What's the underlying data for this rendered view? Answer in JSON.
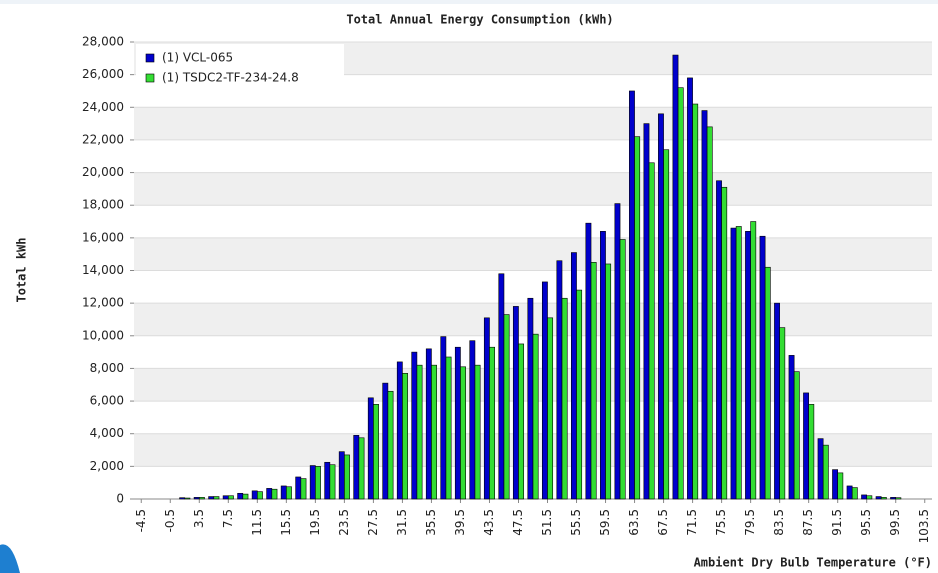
{
  "chart_data": {
    "type": "bar",
    "title": "Total Annual Energy Consumption (kWh)",
    "y_label": "Total kWh",
    "x_label": "Ambient Dry Bulb Temperature (°F)",
    "categories": [
      "-4.5",
      null,
      "-0.5",
      null,
      "3.5",
      null,
      "7.5",
      null,
      "11.5",
      null,
      "15.5",
      null,
      "19.5",
      null,
      "23.5",
      null,
      "27.5",
      null,
      "31.5",
      null,
      "35.5",
      null,
      "39.5",
      null,
      "43.5",
      null,
      "47.5",
      null,
      "51.5",
      null,
      "55.5",
      null,
      "59.5",
      null,
      "63.5",
      null,
      "67.5",
      null,
      "71.5",
      null,
      "75.5",
      null,
      "79.5",
      null,
      "83.5",
      null,
      "87.5",
      null,
      "91.5",
      null,
      "95.5",
      null,
      "99.5",
      null,
      "103.5"
    ],
    "series": [
      {
        "name": "(1) VCL-065",
        "color": "#0000cc",
        "values": [
          0,
          0,
          0,
          80,
          100,
          150,
          200,
          350,
          500,
          650,
          800,
          1350,
          2050,
          2250,
          2900,
          3900,
          6200,
          7100,
          8400,
          9000,
          9200,
          9950,
          9300,
          9700,
          11100,
          13800,
          11800,
          12300,
          13300,
          14600,
          15100,
          16900,
          16400,
          18100,
          25000,
          23000,
          23600,
          27200,
          25800,
          23800,
          19500,
          16600,
          16400,
          16100,
          12000,
          8800,
          6500,
          3700,
          1800,
          800,
          250,
          150,
          100,
          0,
          0
        ]
      },
      {
        "name": "(1) TSDC2-TF-234-24.8",
        "color": "#33dd33",
        "values": [
          0,
          0,
          0,
          60,
          100,
          150,
          200,
          300,
          450,
          600,
          750,
          1250,
          2000,
          2100,
          2700,
          3750,
          5800,
          6600,
          7700,
          8200,
          8200,
          8700,
          8100,
          8200,
          9300,
          11300,
          9500,
          10100,
          11100,
          12300,
          12800,
          14500,
          14400,
          15900,
          22200,
          20600,
          21400,
          25200,
          24200,
          22800,
          19100,
          16700,
          17000,
          14200,
          10500,
          7800,
          5800,
          3300,
          1600,
          700,
          200,
          100,
          80,
          0,
          0
        ]
      }
    ],
    "ylim": [
      0,
      28000
    ],
    "yticks": [
      0,
      {
        "value": 2000,
        "label": "2,000"
      },
      {
        "value": 4000,
        "label": "4,000"
      },
      {
        "value": 6000,
        "label": "6,000"
      },
      {
        "value": 8000,
        "label": "8,000"
      },
      {
        "value": 10000,
        "label": "10,000"
      },
      {
        "value": 12000,
        "label": "12,000"
      },
      {
        "value": 14000,
        "label": "14,000"
      },
      {
        "value": 16000,
        "label": "16,000"
      },
      {
        "value": 18000,
        "label": "18,000"
      },
      {
        "value": 20000,
        "label": "20,000"
      },
      {
        "value": 22000,
        "label": "22,000"
      },
      {
        "value": 24000,
        "label": "24,000"
      },
      {
        "value": 26000,
        "label": "26,000"
      },
      {
        "value": {
          "value": 28000
        },
        "label": "28,000"
      }
    ],
    "grid": "bands",
    "legend": "top-left"
  }
}
